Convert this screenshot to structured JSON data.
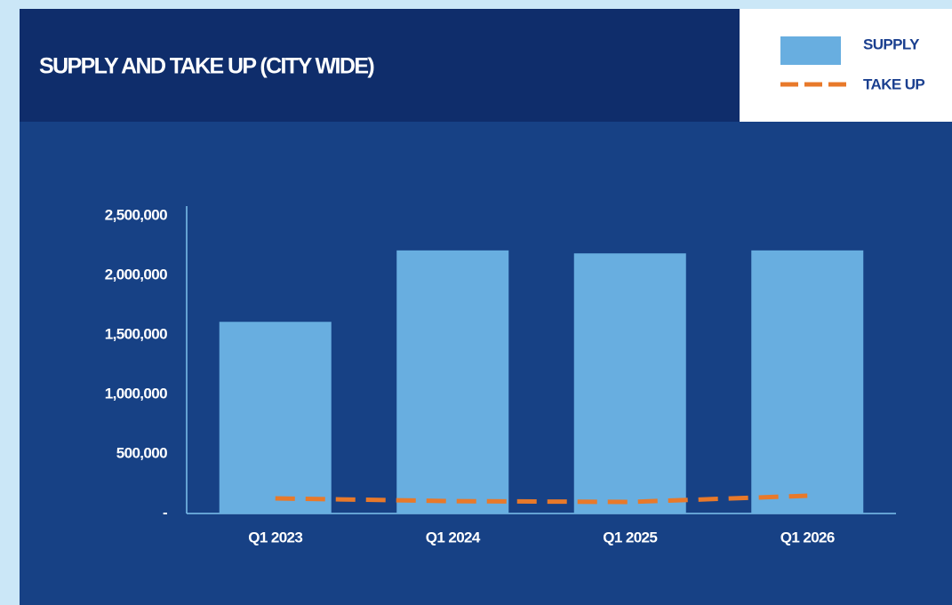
{
  "chart_data": {
    "type": "bar",
    "title": "SUPPLY AND TAKE UP (CITY WIDE)",
    "categories": [
      "Q1 2023",
      "Q1 2024",
      "Q1 2025",
      "Q1 2026"
    ],
    "series": [
      {
        "name": "SUPPLY",
        "type": "bar",
        "color": "#68aee0",
        "values": [
          1610000,
          2210000,
          2185000,
          2210000
        ]
      },
      {
        "name": "TAKE UP",
        "type": "line",
        "color": "#e8792a",
        "values": [
          127000,
          104000,
          97000,
          149000
        ]
      }
    ],
    "ylim": [
      0,
      2500000
    ],
    "yticks": [
      {
        "value": 0,
        "label": "-"
      },
      {
        "value": 500000,
        "label": "500,000"
      },
      {
        "value": 1000000,
        "label": "1,000,000"
      },
      {
        "value": 1500000,
        "label": "1,500,000"
      },
      {
        "value": 2000000,
        "label": "2,000,000"
      },
      {
        "value": 2500000,
        "label": "2,500,000"
      }
    ],
    "legend": "top-right"
  }
}
